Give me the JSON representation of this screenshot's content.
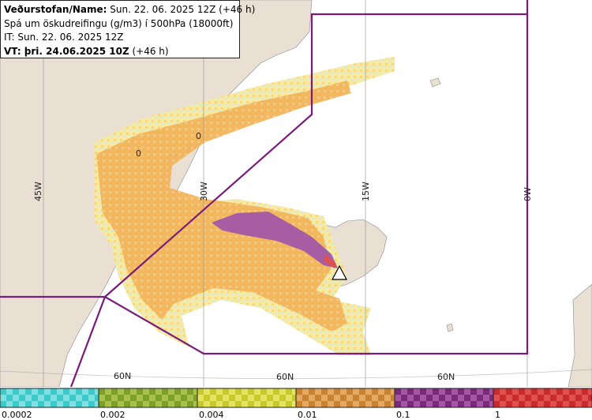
{
  "info_box": {
    "line1_label": "Veðurstofan/Name:",
    "line1_value": "Sun. 22. 06. 2025 12Z (+46 h)",
    "line2": "Spá um öskudreifingu (g/m3) í 500hPa (18000ft)",
    "line3": "IT: Sun. 22. 06. 2025 12Z",
    "line4_label": "VT: þri. 24.06.2025 10Z",
    "line4_value": "(+46 h)"
  },
  "map": {
    "meridian_labels": [
      "45W",
      "30W",
      "15W",
      "0W"
    ],
    "parallel_labels": [
      "60N",
      "60N",
      "60N"
    ],
    "contour_marks": [
      "0",
      "0"
    ],
    "colors": {
      "land": "#eadfd3",
      "sea": "#ffffff",
      "boundary": "#7a1a7a",
      "grid": "#9a9a9a"
    }
  },
  "legend": {
    "swatches": [
      {
        "color": "#3cc9c9",
        "color2": "#7fe0e0"
      },
      {
        "color": "#7e9e2a",
        "color2": "#a8c24a"
      },
      {
        "color": "#c9c92e",
        "color2": "#e4e463"
      },
      {
        "color": "#c9822e",
        "color2": "#e3a962"
      },
      {
        "color": "#7a2a7a",
        "color2": "#a456a4"
      },
      {
        "color": "#c92a2a",
        "color2": "#e05050"
      }
    ],
    "labels": [
      "0.0002",
      "0.002",
      "0.004",
      "0.01",
      "0.1",
      "1"
    ]
  }
}
